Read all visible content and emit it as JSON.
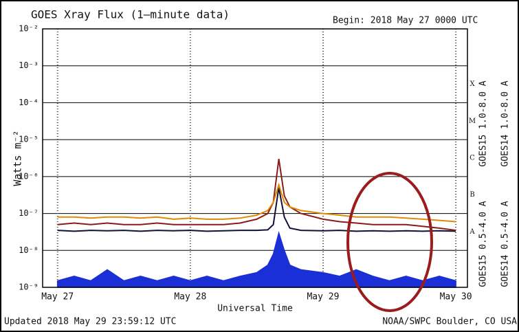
{
  "chart_data": {
    "type": "line",
    "title": "GOES Xray Flux (1—minute data)",
    "begin": "Begin:  2018 May 27 0000 UTC",
    "ylabel": "Watts m⁻²",
    "xlabel": "Universal Time",
    "updated": "Updated 2018 May 29 23:59:12 UTC",
    "credit": "NOAA/SWPC Boulder, CO USA",
    "log_y": true,
    "grid": true,
    "xlim": [
      -2.7,
      74.1
    ],
    "ylim": [
      1e-09,
      0.01
    ],
    "xticks": [
      {
        "value": 0,
        "label": "May 27"
      },
      {
        "value": 24,
        "label": "May 28"
      },
      {
        "value": 48,
        "label": "May 29"
      },
      {
        "value": 72,
        "label": "May 30"
      }
    ],
    "yticks": [
      {
        "value": 1e-09,
        "label": "10⁻⁹"
      },
      {
        "value": 1e-08,
        "label": "10⁻⁸"
      },
      {
        "value": 1e-07,
        "label": "10⁻⁷"
      },
      {
        "value": 1e-06,
        "label": "10⁻⁶"
      },
      {
        "value": 1e-05,
        "label": "10⁻⁵"
      },
      {
        "value": 0.0001,
        "label": "10⁻⁴"
      },
      {
        "value": 0.001,
        "label": "10⁻³"
      },
      {
        "value": 0.01,
        "label": "10⁻²"
      }
    ],
    "flare_classes": [
      {
        "label": "A",
        "value": 1e-08
      },
      {
        "label": "B",
        "value": 1e-07
      },
      {
        "label": "C",
        "value": 1e-06
      },
      {
        "label": "M",
        "value": 1e-05
      },
      {
        "label": "X",
        "value": 0.0001
      }
    ],
    "x": [
      0,
      3,
      6,
      9,
      12,
      15,
      18,
      21,
      24,
      27,
      30,
      33,
      36,
      38,
      39,
      40,
      41,
      42,
      44,
      48,
      51,
      54,
      57,
      60,
      63,
      66,
      69,
      72
    ],
    "series": [
      {
        "name": "GOES14 1.0-8.0 A",
        "color": "#e08a00",
        "values": [
          8e-08,
          8e-08,
          7.5e-08,
          8e-08,
          8e-08,
          7.5e-08,
          8e-08,
          7e-08,
          7.5e-08,
          7e-08,
          7e-08,
          7.5e-08,
          9e-08,
          1.2e-07,
          2e-07,
          6e-07,
          2e-07,
          1.5e-07,
          1.2e-07,
          1e-07,
          9e-08,
          8e-08,
          8e-08,
          8e-08,
          7.5e-08,
          7e-08,
          6.5e-08,
          6e-08
        ]
      },
      {
        "name": "GOES15 1.0-8.0 A",
        "color": "#8b1a1a",
        "values": [
          5e-08,
          5.5e-08,
          5e-08,
          5.5e-08,
          5e-08,
          5e-08,
          5.5e-08,
          5e-08,
          5e-08,
          5e-08,
          5e-08,
          5.5e-08,
          7e-08,
          1e-07,
          2e-07,
          3e-06,
          3e-07,
          1.5e-07,
          1e-07,
          7e-08,
          6e-08,
          5.5e-08,
          5e-08,
          5e-08,
          5e-08,
          4.5e-08,
          4e-08,
          3.5e-08
        ]
      },
      {
        "name": "GOES15 0.5-4.0 A",
        "color": "#111133",
        "values": [
          3.5e-08,
          3.3e-08,
          3.5e-08,
          3.4e-08,
          3.5e-08,
          3.3e-08,
          3.5e-08,
          3.4e-08,
          3.5e-08,
          3.3e-08,
          3.4e-08,
          3.5e-08,
          3.5e-08,
          3.6e-08,
          5e-08,
          5e-07,
          8e-08,
          4e-08,
          3.5e-08,
          3.4e-08,
          3.5e-08,
          3.3e-08,
          3.4e-08,
          3.3e-08,
          3.4e-08,
          3.3e-08,
          3.4e-08,
          3.3e-08
        ]
      },
      {
        "name": "GOES14 0.5-4.0 A",
        "color": "#1a2fd6",
        "values": [
          1.5e-09,
          2e-09,
          1.5e-09,
          3e-09,
          1.5e-09,
          2e-09,
          1.5e-09,
          2e-09,
          1.5e-09,
          2e-09,
          1.5e-09,
          2e-09,
          2.5e-09,
          4e-09,
          8e-09,
          3e-08,
          1e-08,
          4e-09,
          3e-09,
          2.5e-09,
          2e-09,
          3e-09,
          2e-09,
          1.5e-09,
          2e-09,
          1.5e-09,
          2e-09,
          1.5e-09
        ]
      }
    ]
  }
}
